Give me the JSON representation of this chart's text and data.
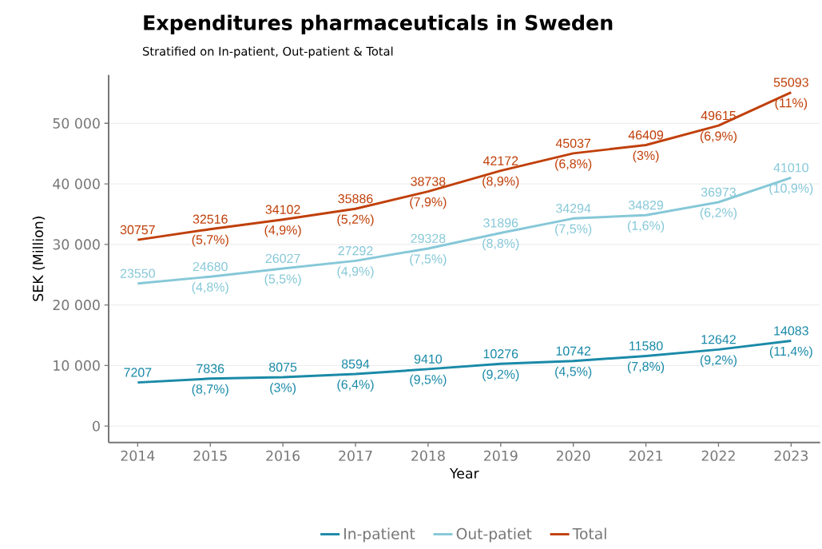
{
  "chart_data": {
    "type": "line",
    "title": "Expenditures pharmaceuticals in Sweden",
    "subtitle": "Stratified on In-patient, Out-patient & Total",
    "xlabel": "Year",
    "ylabel": "SEK (Million)",
    "x": [
      2014,
      2015,
      2016,
      2017,
      2018,
      2019,
      2020,
      2021,
      2022,
      2023
    ],
    "series": [
      {
        "name": "In-patient",
        "color": "#1a8aa8",
        "values": [
          7207,
          7836,
          8075,
          8594,
          9410,
          10276,
          10742,
          11580,
          12642,
          14083
        ]
      },
      {
        "name": "Out-patiet",
        "color": "#86c8d8",
        "values": [
          23550,
          24680,
          26027,
          27292,
          29328,
          31896,
          34294,
          34829,
          36973,
          41010
        ]
      },
      {
        "name": "Total",
        "color": "#c0400a",
        "values": [
          30757,
          32516,
          34102,
          35886,
          38738,
          42172,
          45037,
          46409,
          49615,
          55093
        ]
      }
    ],
    "data_labels": true,
    "annotations": [
      {
        "text": "(8,7%)",
        "x": 2015,
        "y": 7836
      },
      {
        "text": "(3%)",
        "x": 2016,
        "y": 8075
      },
      {
        "text": "(6,4%)",
        "x": 2017,
        "y": 8594
      },
      {
        "text": "(9,5%)",
        "x": 2018,
        "y": 9410
      },
      {
        "text": "(9,2%)",
        "x": 2019,
        "y": 10276
      },
      {
        "text": "(4,5%)",
        "x": 2020,
        "y": 10742
      },
      {
        "text": "(7,8%)",
        "x": 2021,
        "y": 11580
      },
      {
        "text": "(9,2%)",
        "x": 2022,
        "y": 12642
      },
      {
        "text": "(11,4%)",
        "x": 2023,
        "y": 14083
      },
      {
        "text": "(4,8%)",
        "x": 2015,
        "y": 24680
      },
      {
        "text": "(5,5%)",
        "x": 2016,
        "y": 26027
      },
      {
        "text": "(4,9%)",
        "x": 2017,
        "y": 27292
      },
      {
        "text": "(7,5%)",
        "x": 2018,
        "y": 29328
      },
      {
        "text": "(8,8%)",
        "x": 2019,
        "y": 31896
      },
      {
        "text": "(7,5%)",
        "x": 2020,
        "y": 34294
      },
      {
        "text": "(1,6%)",
        "x": 2021,
        "y": 34829
      },
      {
        "text": "(6,2%)",
        "x": 2022,
        "y": 36973
      },
      {
        "text": "(10,9%)",
        "x": 2023,
        "y": 41010
      },
      {
        "text": "(5,7%)",
        "x": 2015,
        "y": 32516
      },
      {
        "text": "(4,9%)",
        "x": 2016,
        "y": 34102
      },
      {
        "text": "(5,2%)",
        "x": 2017,
        "y": 35886
      },
      {
        "text": "(7,9%)",
        "x": 2018,
        "y": 38738
      },
      {
        "text": "(8,9%)",
        "x": 2019,
        "y": 42172
      },
      {
        "text": "(6,8%)",
        "x": 2020,
        "y": 45037
      },
      {
        "text": "(3%)",
        "x": 2021,
        "y": 46409
      },
      {
        "text": "(6,9%)",
        "x": 2022,
        "y": 49615
      },
      {
        "text": "(11%)",
        "x": 2023,
        "y": 55093
      }
    ],
    "xlim": [
      2013.6,
      2023.4
    ],
    "xticks": [
      2014,
      2015,
      2016,
      2017,
      2018,
      2019,
      2020,
      2021,
      2022,
      2023
    ],
    "ylim": [
      -2700,
      58000
    ],
    "yticks": [
      0,
      {
        "value": 10000,
        "label": "10 000"
      },
      {
        "value": 20000,
        "label": "20 000"
      },
      {
        "value": 30000,
        "label": "30 000"
      },
      {
        "value": 40000,
        "label": "40 000"
      },
      {
        "value": 50000,
        "label": "50 000"
      }
    ],
    "grid": "y",
    "legend": "bottom",
    "marker": "none",
    "line_style": "solid"
  }
}
